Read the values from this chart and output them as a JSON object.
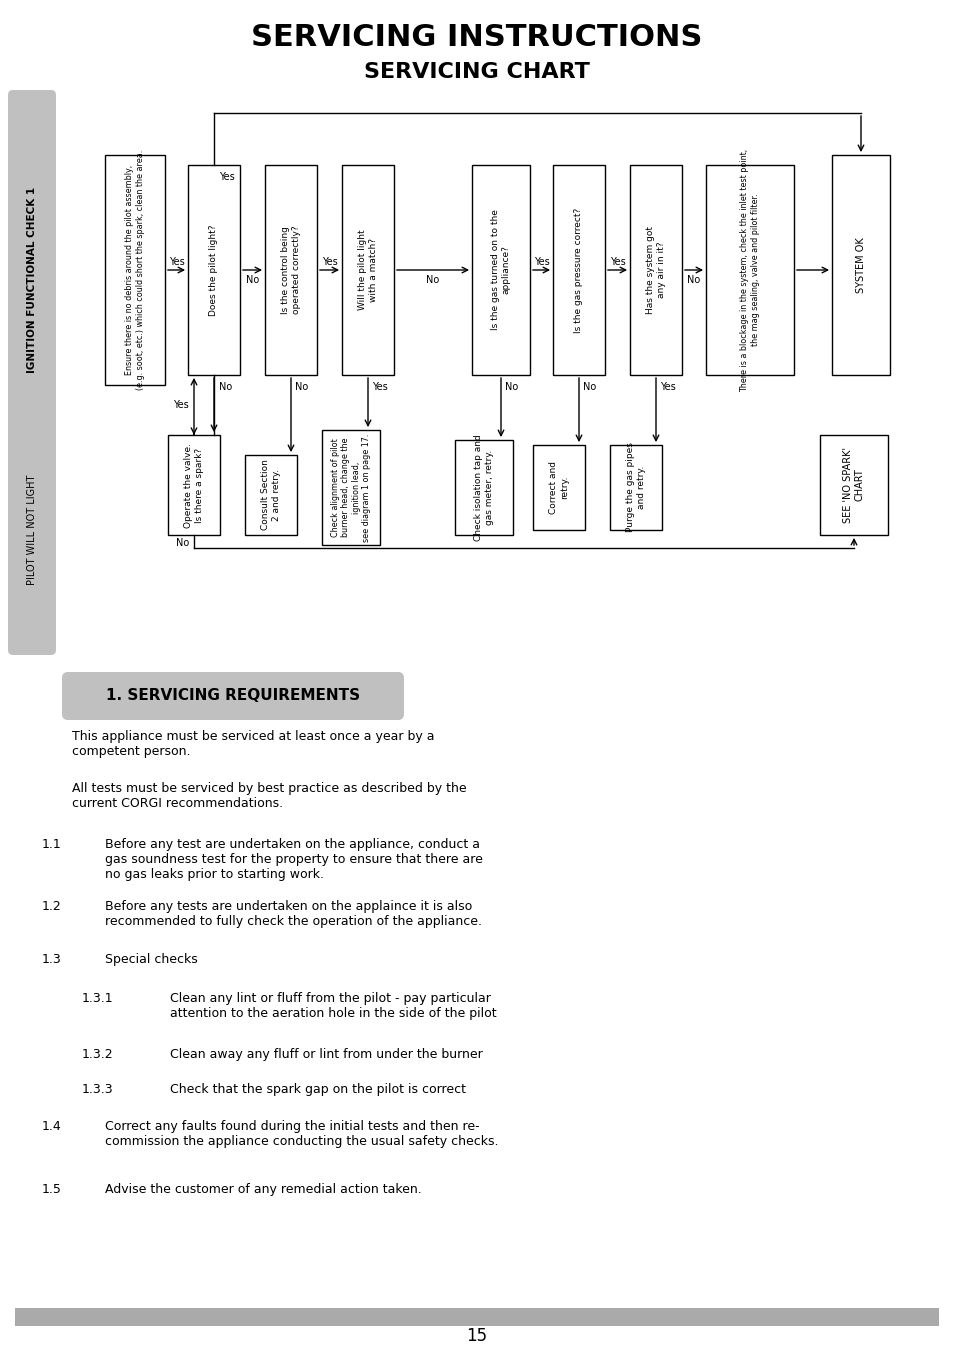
{
  "title1": "SERVICING INSTRUCTIONS",
  "title2": "SERVICING CHART",
  "side_label_top": "IGNITION FUNCTIONAL CHECK 1",
  "side_label_bottom": "PILOT WILL NOT LIGHT",
  "section_header": "1. SERVICING REQUIREMENTS",
  "body_text": [
    "This appliance must be serviced at least once a year by a\ncompetent person.",
    "All tests must be serviced by best practice as described by the\ncurrent CORGI recommendations."
  ],
  "numbered_items": [
    {
      "num": "1.1",
      "text": "Before any test are undertaken on the appliance, conduct a\ngas soundness test for the property to ensure that there are\nno gas leaks prior to starting work."
    },
    {
      "num": "1.2",
      "text": "Before any tests are undertaken on the applaince it is also\nrecommended to fully check the operation of the appliance."
    },
    {
      "num": "1.3",
      "text": "Special checks"
    },
    {
      "num": "1.3.1",
      "text": "Clean any lint or fluff from the pilot - pay particular\nattention to the aeration hole in the side of the pilot"
    },
    {
      "num": "1.3.2",
      "text": "Clean away any fluff or lint from under the burner"
    },
    {
      "num": "1.3.3",
      "text": "Check that the spark gap on the pilot is correct"
    },
    {
      "num": "1.4",
      "text": "Correct any faults found during the initial tests and then re-\ncommission the appliance conducting the usual safety checks."
    },
    {
      "num": "1.5",
      "text": "Advise the customer of any remedial action taken."
    }
  ],
  "page_number": "15",
  "bg_color": "#ffffff",
  "side_tab_color": "#c0c0c0",
  "section_header_bg": "#c0c0c0",
  "top_boxes": [
    {
      "text": "Ensure there is no debris around the pilot assembly,\n(e.g. soot, etc.) which could short the spark, clean the area."
    },
    {
      "text": "Does the pilot light?"
    },
    {
      "text": "Is the control being\noperated correctly?"
    },
    {
      "text": "Will the pilot light\nwith a match?"
    },
    {
      "text": "Is the gas turned on to the\nappliance?"
    },
    {
      "text": "Is the gas pressure correct?"
    },
    {
      "text": "Has the system got\nany air in it?"
    },
    {
      "text": "There is a blockage in the system, check the inlet test point,\nthe mag sealing, valve and pilot filter."
    },
    {
      "text": "SYSTEM OK"
    }
  ],
  "bottom_boxes": [
    {
      "text": "Operate the valve.\nIs there a spark?"
    },
    {
      "text": "Consult Section\n2 and retry."
    },
    {
      "text": "Check alignment of pilot\nburner head, change the\nignition lead,\nsee diagram 1 on page 17."
    },
    {
      "text": "Check isolation tap and\ngas meter, retry."
    },
    {
      "text": "Correct and\nretry."
    },
    {
      "text": "Purge the gas pipes\nand retry."
    },
    {
      "text": "SEE 'NO SPARK'\nCHART"
    }
  ]
}
